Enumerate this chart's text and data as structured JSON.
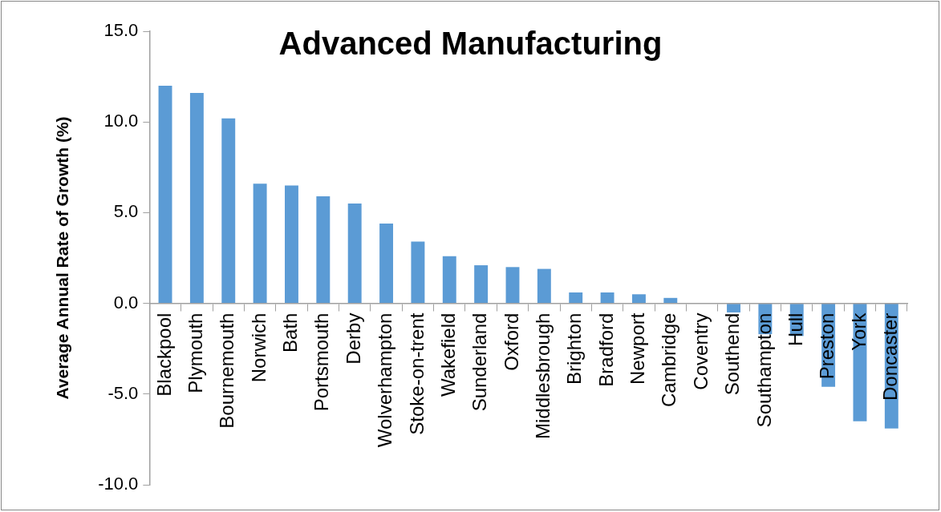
{
  "chart_data": {
    "type": "bar",
    "title": "Advanced Manufacturing",
    "ylabel": "Average Annual Rate of Growth (%)",
    "categories": [
      "Blackpool",
      "Plymouth",
      "Bournemouth",
      "Norwich",
      "Bath",
      "Portsmouth",
      "Derby",
      "Wolverhampton",
      "Stoke-on-trent",
      "Wakefield",
      "Sunderland",
      "Oxford",
      "Middlesbrough",
      "Brighton",
      "Bradford",
      "Newport",
      "Cambridge",
      "Coventry",
      "Southend",
      "Southampton",
      "Hull",
      "Preston",
      "York",
      "Doncaster"
    ],
    "values": [
      12.0,
      11.6,
      10.2,
      6.6,
      6.5,
      5.9,
      5.5,
      4.4,
      3.4,
      2.6,
      2.1,
      2.0,
      1.9,
      0.6,
      0.6,
      0.5,
      0.3,
      0,
      -0.5,
      -1.7,
      -1.8,
      -4.6,
      -6.5,
      -6.9
    ],
    "color": "#5b9bd5",
    "ylim": [
      -10,
      15
    ],
    "yticks": [
      {
        "value": -10,
        "label": "-10.0"
      },
      {
        "value": -5,
        "label": "-5.0"
      },
      {
        "value": 0,
        "label": "0.0"
      },
      {
        "value": 5,
        "label": "5.0"
      },
      {
        "value": 10,
        "label": "10.0"
      },
      {
        "value": 15,
        "label": "15.0"
      }
    ],
    "grid": false,
    "legend": false
  }
}
